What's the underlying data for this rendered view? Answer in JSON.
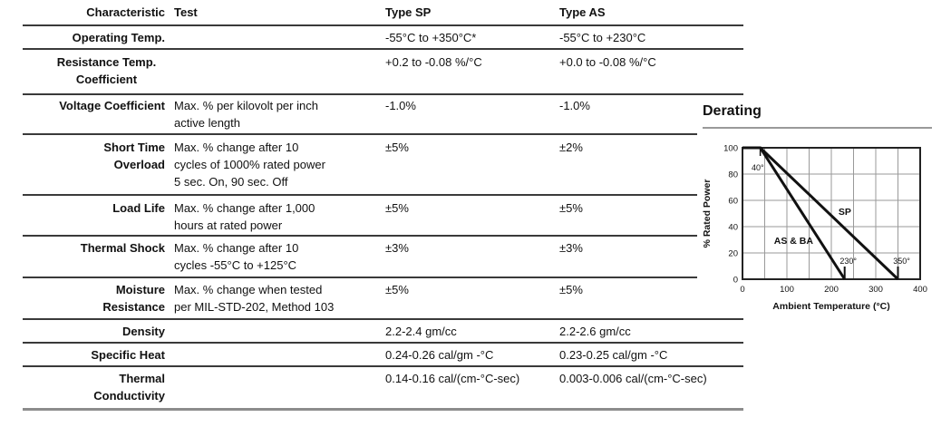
{
  "table": {
    "headers": {
      "characteristic": "Characteristic",
      "test": "Test",
      "type_sp": "Type SP",
      "type_as": "Type AS"
    },
    "rows": [
      {
        "characteristic": "Operating Temp.",
        "test": "",
        "type_sp": "-55°C to +350°C*",
        "type_as": "-55°C to +230°C"
      },
      {
        "characteristic": "Resistance Temp.\nCoefficient",
        "test": "",
        "type_sp": "+0.2 to -0.08 %/°C",
        "type_as": "+0.0 to -0.08 %/°C"
      },
      {
        "characteristic": "Voltage Coefficient",
        "test": "Max. % per kilovolt per inch\nactive length",
        "type_sp": "-1.0%",
        "type_as": "-1.0%"
      },
      {
        "characteristic": "Short Time\nOverload",
        "test": "Max. % change after 10\ncycles of 1000% rated power\n5 sec. On, 90 sec. Off",
        "type_sp": "±5%",
        "type_as": "±2%"
      },
      {
        "characteristic": "Load Life",
        "test": "Max. % change after 1,000\nhours at rated power",
        "type_sp": "±5%",
        "type_as": "±5%"
      },
      {
        "characteristic": "Thermal Shock",
        "test": "Max. % change after 10\ncycles -55°C to +125°C",
        "type_sp": "±3%",
        "type_as": "±3%"
      },
      {
        "characteristic": "Moisture\nResistance",
        "test": "Max. % change when tested\nper MIL-STD-202, Method 103",
        "type_sp": "±5%",
        "type_as": "±5%"
      },
      {
        "characteristic": "Density",
        "test": "",
        "type_sp": "2.2-2.4 gm/cc",
        "type_as": "2.2-2.6 gm/cc"
      },
      {
        "characteristic": "Specific Heat",
        "test": "",
        "type_sp": "0.24-0.26 cal/gm -°C",
        "type_as": "0.23-0.25 cal/gm -°C"
      },
      {
        "characteristic": "Thermal\nConductivity",
        "test": "",
        "type_sp": "0.14-0.16 cal/(cm-°C-sec)",
        "type_as": "0.003-0.006 cal/(cm-°C-sec)"
      }
    ]
  },
  "chart_data": {
    "type": "line",
    "title": "Derating",
    "xlabel": "Ambient Temperature (°C)",
    "ylabel": "% Rated Power",
    "xlim": [
      0,
      400
    ],
    "ylim": [
      0,
      100
    ],
    "xticks": [
      0,
      100,
      200,
      300,
      400
    ],
    "yticks": [
      0,
      20,
      40,
      60,
      80,
      100
    ],
    "x_grid_step": 50,
    "y_grid_step": 20,
    "grid": true,
    "series": [
      {
        "name": "SP",
        "points": [
          [
            0,
            100
          ],
          [
            40,
            100
          ],
          [
            350,
            0
          ]
        ],
        "label_at": [
          216,
          49
        ]
      },
      {
        "name": "AS & BA",
        "points": [
          [
            0,
            100
          ],
          [
            40,
            100
          ],
          [
            230,
            0
          ]
        ],
        "label_at": [
          71,
          27
        ]
      }
    ],
    "annotations": [
      {
        "text": "40°",
        "x": 40,
        "anchor": "top"
      },
      {
        "text": "230°",
        "x": 230,
        "anchor": "bottom"
      },
      {
        "text": "350°",
        "x": 350,
        "anchor": "bottom"
      }
    ],
    "colors": {
      "line": "#111111",
      "grid": "#9a9a9a",
      "frame": "#222222"
    }
  }
}
